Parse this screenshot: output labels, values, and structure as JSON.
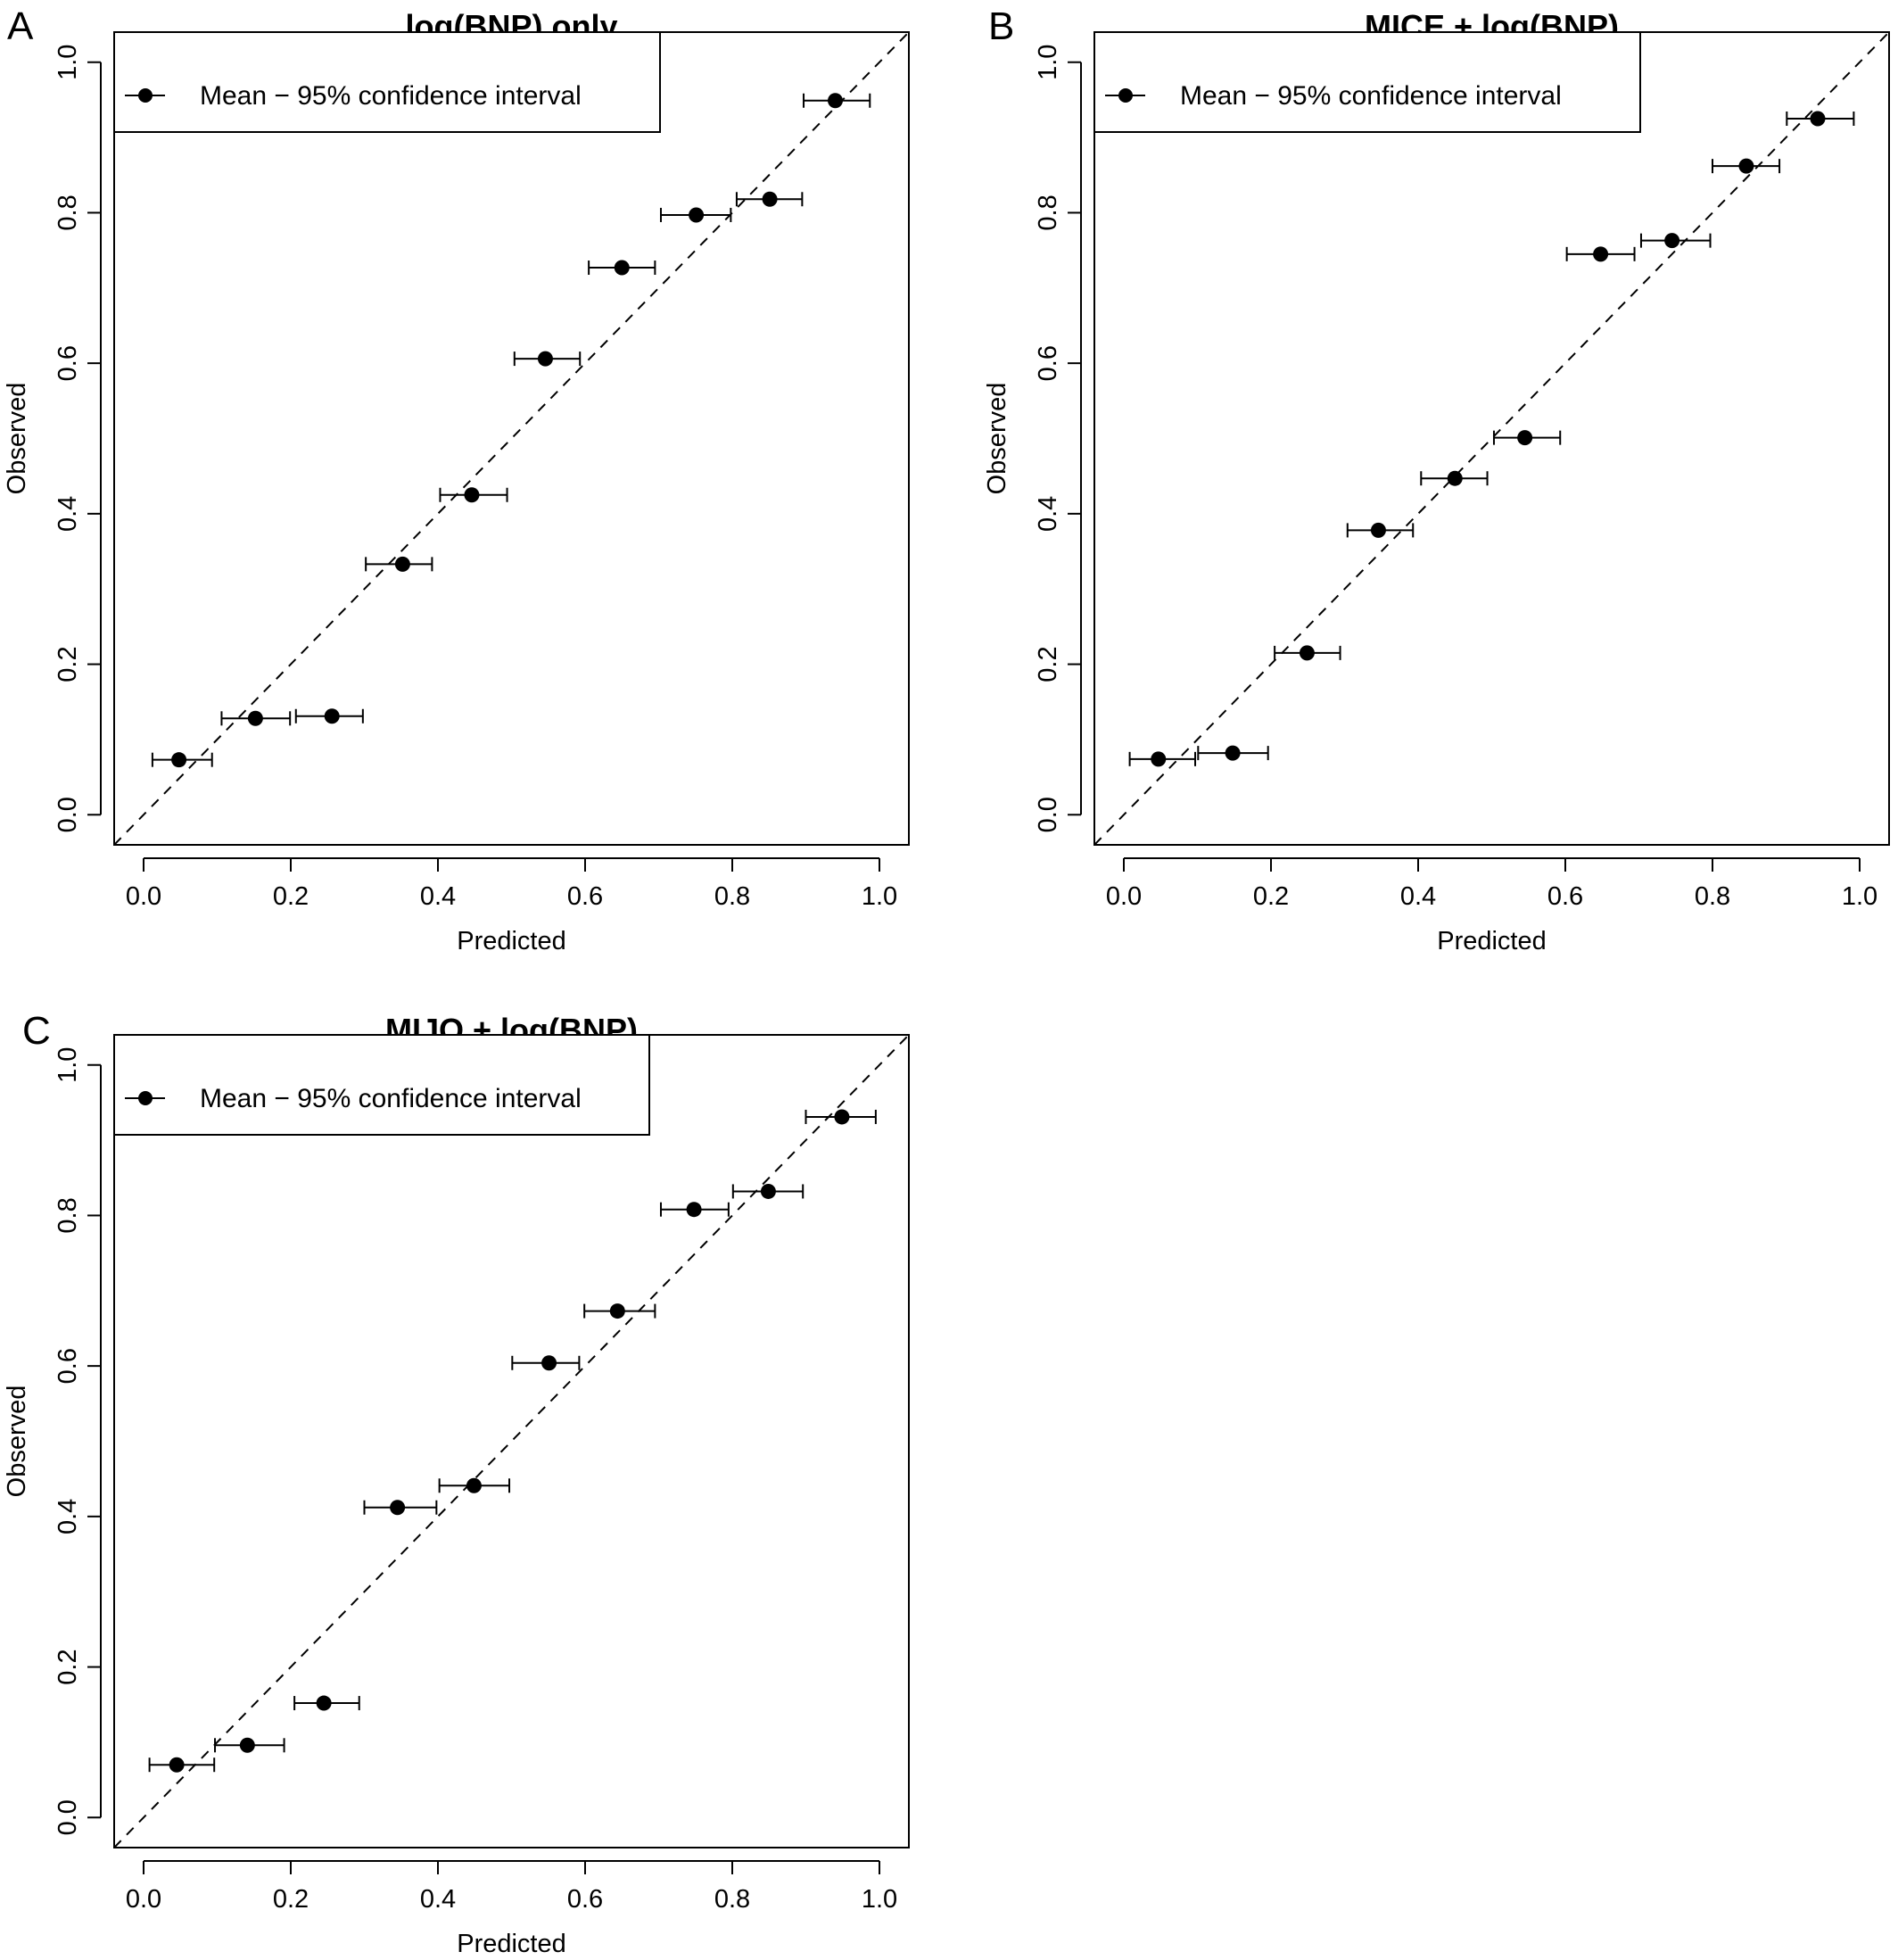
{
  "chart_data": [
    {
      "type": "scatter",
      "panel": "A",
      "title": "log(BNP) only",
      "xlabel": "Predicted",
      "ylabel": "Observed",
      "xlim": [
        -0.04,
        1.04
      ],
      "ylim": [
        -0.04,
        1.04
      ],
      "xticks": [
        "0.0",
        "0.2",
        "0.4",
        "0.6",
        "0.8",
        "1.0"
      ],
      "yticks": [
        "0.0",
        "0.2",
        "0.4",
        "0.6",
        "0.8",
        "1.0"
      ],
      "legend": {
        "label": "Mean − 95% confidence interval",
        "position": "top-left"
      },
      "reference_line": "y = x (dashed)",
      "points": [
        {
          "x": 0.048,
          "y": 0.073,
          "xlo": 0.012,
          "xhi": 0.093
        },
        {
          "x": 0.152,
          "y": 0.128,
          "xlo": 0.106,
          "xhi": 0.199
        },
        {
          "x": 0.256,
          "y": 0.131,
          "xlo": 0.207,
          "xhi": 0.298
        },
        {
          "x": 0.352,
          "y": 0.333,
          "xlo": 0.302,
          "xhi": 0.392
        },
        {
          "x": 0.446,
          "y": 0.425,
          "xlo": 0.403,
          "xhi": 0.494
        },
        {
          "x": 0.546,
          "y": 0.606,
          "xlo": 0.504,
          "xhi": 0.593
        },
        {
          "x": 0.65,
          "y": 0.727,
          "xlo": 0.605,
          "xhi": 0.695
        },
        {
          "x": 0.751,
          "y": 0.797,
          "xlo": 0.703,
          "xhi": 0.798
        },
        {
          "x": 0.851,
          "y": 0.818,
          "xlo": 0.806,
          "xhi": 0.895
        },
        {
          "x": 0.94,
          "y": 0.949,
          "xlo": 0.897,
          "xhi": 0.987
        }
      ]
    },
    {
      "type": "scatter",
      "panel": "B",
      "title": "MICE + log(BNP)",
      "xlabel": "Predicted",
      "ylabel": "Observed",
      "xlim": [
        -0.04,
        1.04
      ],
      "ylim": [
        -0.04,
        1.04
      ],
      "xticks": [
        "0.0",
        "0.2",
        "0.4",
        "0.6",
        "0.8",
        "1.0"
      ],
      "yticks": [
        "0.0",
        "0.2",
        "0.4",
        "0.6",
        "0.8",
        "1.0"
      ],
      "legend": {
        "label": "Mean − 95% confidence interval",
        "position": "top-left"
      },
      "reference_line": "y = x (dashed)",
      "points": [
        {
          "x": 0.047,
          "y": 0.074,
          "xlo": 0.008,
          "xhi": 0.097
        },
        {
          "x": 0.148,
          "y": 0.082,
          "xlo": 0.101,
          "xhi": 0.196
        },
        {
          "x": 0.249,
          "y": 0.215,
          "xlo": 0.205,
          "xhi": 0.294
        },
        {
          "x": 0.346,
          "y": 0.378,
          "xlo": 0.304,
          "xhi": 0.393
        },
        {
          "x": 0.45,
          "y": 0.447,
          "xlo": 0.404,
          "xhi": 0.494
        },
        {
          "x": 0.545,
          "y": 0.501,
          "xlo": 0.503,
          "xhi": 0.593
        },
        {
          "x": 0.648,
          "y": 0.745,
          "xlo": 0.602,
          "xhi": 0.694
        },
        {
          "x": 0.745,
          "y": 0.763,
          "xlo": 0.703,
          "xhi": 0.797
        },
        {
          "x": 0.846,
          "y": 0.862,
          "xlo": 0.8,
          "xhi": 0.891
        },
        {
          "x": 0.943,
          "y": 0.925,
          "xlo": 0.901,
          "xhi": 0.992
        }
      ]
    },
    {
      "type": "scatter",
      "panel": "C",
      "title": "MIJO + log(BNP)",
      "xlabel": "Predicted",
      "ylabel": "Observed",
      "xlim": [
        -0.04,
        1.04
      ],
      "ylim": [
        -0.04,
        1.04
      ],
      "xticks": [
        "0.0",
        "0.2",
        "0.4",
        "0.6",
        "0.8",
        "1.0"
      ],
      "yticks": [
        "0.0",
        "0.2",
        "0.4",
        "0.6",
        "0.8",
        "1.0"
      ],
      "legend": {
        "label": "Mean − 95% confidence interval",
        "position": "top-left"
      },
      "reference_line": "y = x (dashed)",
      "points": [
        {
          "x": 0.045,
          "y": 0.07,
          "xlo": 0.008,
          "xhi": 0.096
        },
        {
          "x": 0.141,
          "y": 0.096,
          "xlo": 0.097,
          "xhi": 0.191
        },
        {
          "x": 0.245,
          "y": 0.152,
          "xlo": 0.205,
          "xhi": 0.293
        },
        {
          "x": 0.345,
          "y": 0.412,
          "xlo": 0.3,
          "xhi": 0.398
        },
        {
          "x": 0.449,
          "y": 0.441,
          "xlo": 0.402,
          "xhi": 0.497
        },
        {
          "x": 0.551,
          "y": 0.604,
          "xlo": 0.501,
          "xhi": 0.592
        },
        {
          "x": 0.644,
          "y": 0.673,
          "xlo": 0.599,
          "xhi": 0.695
        },
        {
          "x": 0.748,
          "y": 0.808,
          "xlo": 0.703,
          "xhi": 0.795
        },
        {
          "x": 0.849,
          "y": 0.832,
          "xlo": 0.801,
          "xhi": 0.896
        },
        {
          "x": 0.949,
          "y": 0.931,
          "xlo": 0.9,
          "xhi": 0.995
        }
      ]
    }
  ]
}
